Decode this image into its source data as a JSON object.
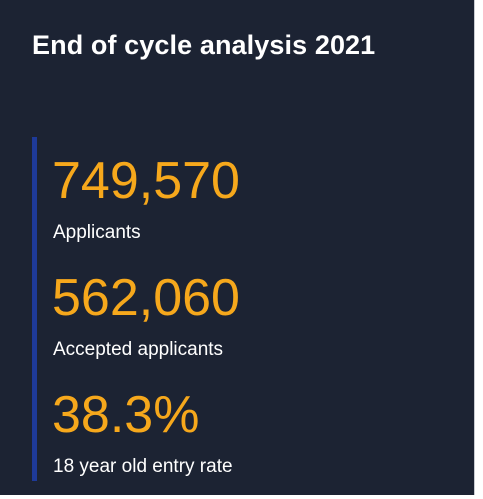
{
  "card": {
    "title": "End of cycle analysis 2021",
    "colors": {
      "background": "#1c2333",
      "accent_bar": "#1e3a99",
      "value": "#f6a81c",
      "label": "#ffffff"
    },
    "stats": [
      {
        "value": "749,570",
        "label": "Applicants"
      },
      {
        "value": "562,060",
        "label": "Accepted applicants"
      },
      {
        "value": "38.3%",
        "label": "18 year old entry rate"
      }
    ]
  }
}
